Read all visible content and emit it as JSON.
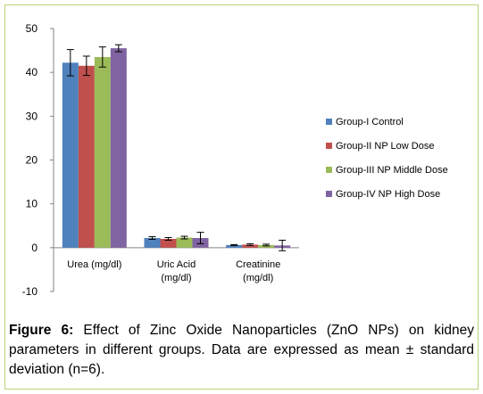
{
  "chart_data": {
    "type": "bar",
    "categories": [
      [
        "Urea (mg/dl)"
      ],
      [
        "Uric Acid",
        "(mg/dl)"
      ],
      [
        "Creatinine",
        "(mg/dl)"
      ]
    ],
    "series": [
      {
        "name": "Group-I Control",
        "color": "#4f81bd",
        "values": [
          42.2,
          2.2,
          0.6
        ],
        "errors": [
          3.0,
          0.3,
          0.1
        ]
      },
      {
        "name": "Group-II NP Low Dose",
        "color": "#c0504d",
        "values": [
          41.5,
          2.0,
          0.7
        ],
        "errors": [
          2.2,
          0.3,
          0.2
        ]
      },
      {
        "name": "Group-III NP Middle Dose",
        "color": "#9bbb59",
        "values": [
          43.5,
          2.3,
          0.6
        ],
        "errors": [
          2.3,
          0.3,
          0.2
        ]
      },
      {
        "name": "Group-IV NP High Dose",
        "color": "#8064a2",
        "values": [
          45.5,
          2.2,
          0.5
        ],
        "errors": [
          0.8,
          1.3,
          1.2
        ]
      }
    ],
    "ylim": [
      -10,
      50
    ],
    "yticks": [
      -10,
      0,
      10,
      20,
      30,
      40,
      50
    ],
    "legend_position": "right"
  },
  "caption": {
    "label": "Figure 6:",
    "text": " Effect of Zinc Oxide Nanoparticles (ZnO NPs) on kidney parameters in different groups. Data are expressed  as mean ± standard deviation (n=6)."
  }
}
